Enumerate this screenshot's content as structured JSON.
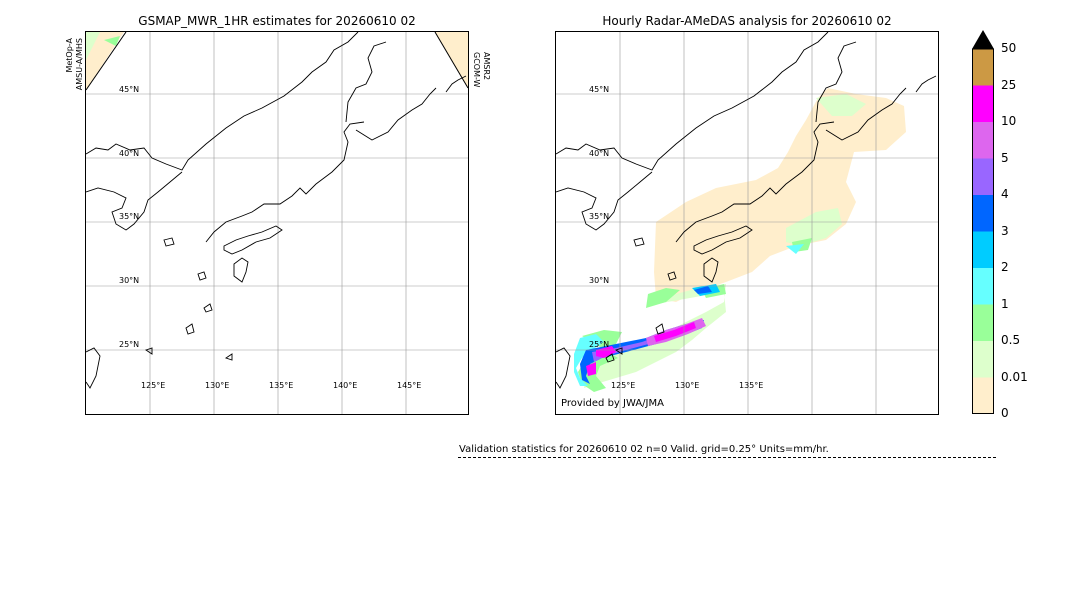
{
  "left_panel": {
    "title": "GSMAP_MWR_1HR estimates for 20260610 02",
    "sat_left_1": "MetOp-A",
    "sat_left_2": "AMSU-A/MHS",
    "sat_right_1": "GCOM-W",
    "sat_right_2": "AMSR2",
    "lat_labels": [
      "45°N",
      "40°N",
      "35°N",
      "30°N",
      "25°N"
    ],
    "lon_labels": [
      "125°E",
      "130°E",
      "135°E",
      "140°E",
      "145°E"
    ]
  },
  "right_panel": {
    "title": "Hourly Radar-AMeDAS analysis for 20260610 02",
    "lat_labels": [
      "45°N",
      "40°N",
      "35°N",
      "30°N",
      "25°N"
    ],
    "lon_labels": [
      "125°E",
      "130°E",
      "135°E"
    ],
    "credit": "Provided by JWA/JMA"
  },
  "colorbar": {
    "labels": [
      "50",
      "25",
      "10",
      "5",
      "4",
      "3",
      "2",
      "1",
      "0.5",
      "0.01",
      "0"
    ],
    "colors": [
      "#cc9944",
      "#ff00ff",
      "#dd66ee",
      "#9966ff",
      "#0066ff",
      "#00ccff",
      "#66ffff",
      "#99ff99",
      "#ddffcc",
      "#ffeecc"
    ],
    "extend_color": "#000000"
  },
  "stats": {
    "text": "Validation statistics for 20260610 02  n=0 Valid. grid=0.25° Units=mm/hr."
  }
}
